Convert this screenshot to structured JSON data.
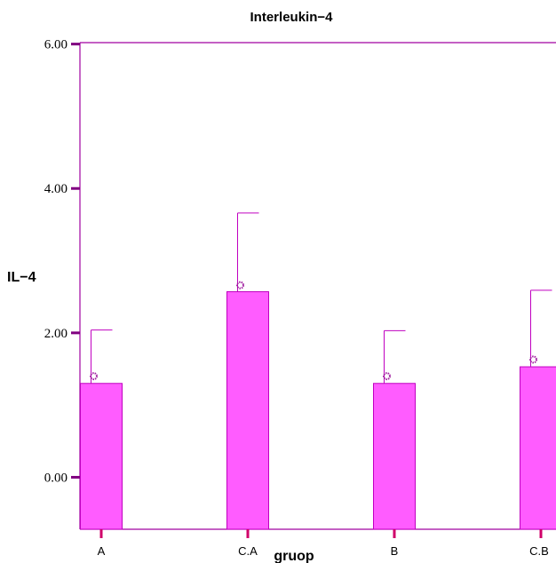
{
  "chart_data": {
    "type": "bar",
    "title": "Interleukin−4",
    "xlabel": "gruop",
    "ylabel": "IL−4",
    "categories": [
      "A",
      "C.A",
      "B",
      "C.B"
    ],
    "values": [
      1.3,
      2.57,
      1.3,
      1.53
    ],
    "error_upper": [
      2.04,
      3.66,
      2.03,
      2.59
    ],
    "markers": [
      1.4,
      2.66,
      1.4,
      1.63
    ],
    "yticks": [
      "0.00",
      "2.00",
      "4.00",
      "6.00"
    ],
    "ytick_values": [
      0,
      2,
      4,
      6
    ],
    "ylim": [
      -0.72,
      6.02
    ],
    "colors": {
      "bar_fill": "#ff5cff",
      "bar_stroke": "#c000c0",
      "axis": "#a000a0",
      "tick": "#800080",
      "xtick": "#d0006a",
      "marker": "#a020a0"
    }
  }
}
